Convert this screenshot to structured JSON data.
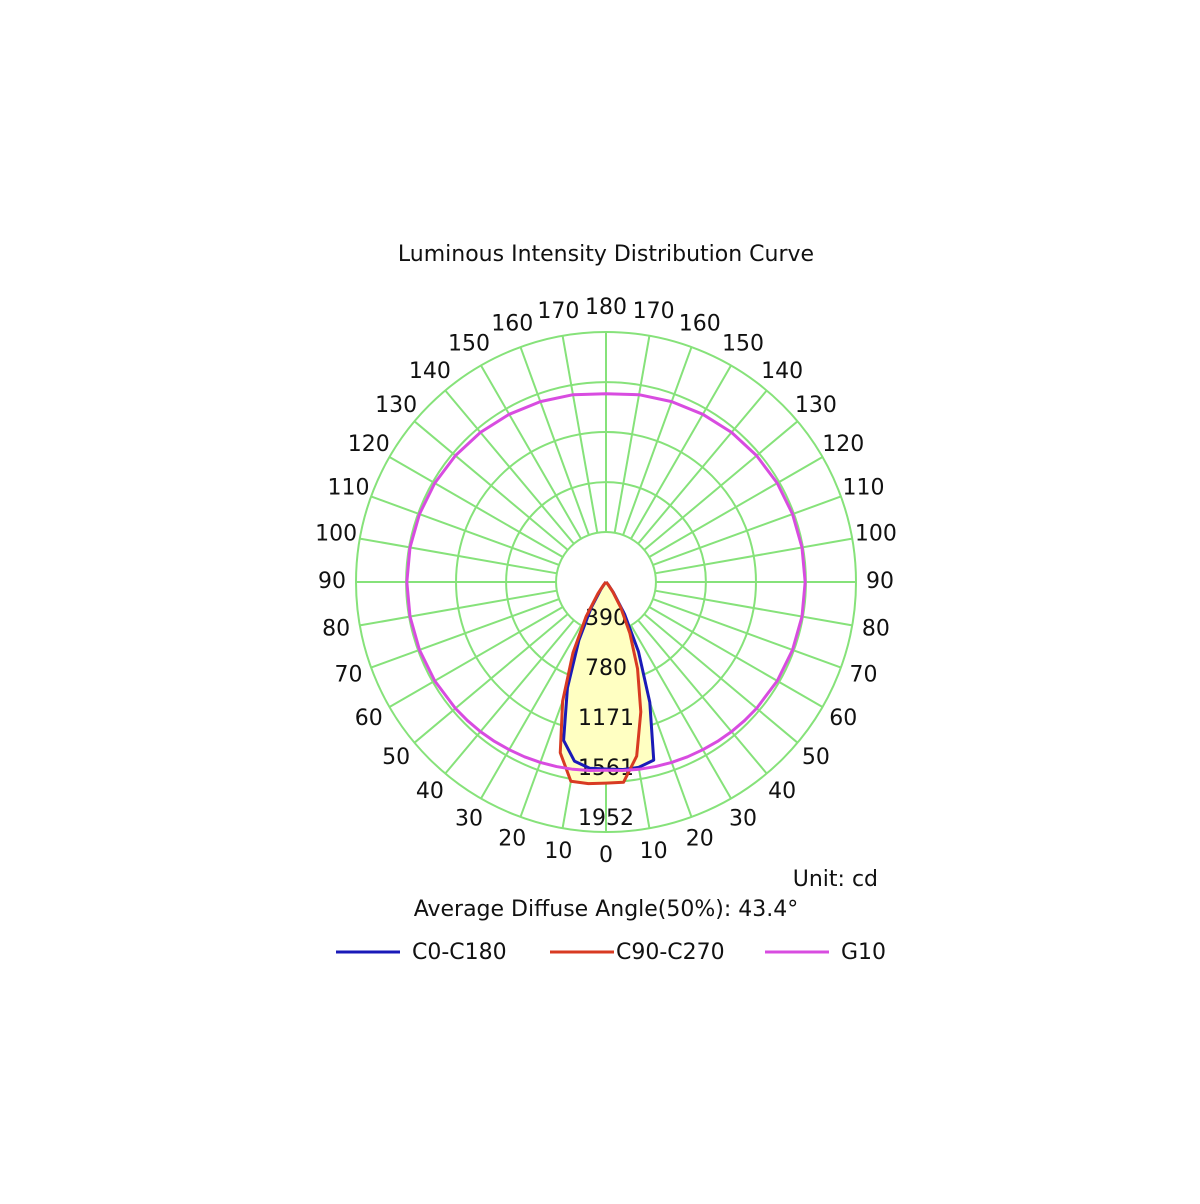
{
  "chart_data": {
    "type": "polar",
    "title": "Luminous Intensity Distribution Curve",
    "unit_label": "Unit: cd",
    "diffuse_angle_label": "Average Diffuse Angle(50%): 43.4°",
    "rlim": [
      0,
      1952
    ],
    "rticks": [
      390,
      780,
      1171,
      1561,
      1952
    ],
    "thetaticks": [
      0,
      10,
      20,
      30,
      40,
      50,
      60,
      70,
      80,
      90,
      100,
      110,
      120,
      130,
      140,
      150,
      160,
      170,
      180
    ],
    "grid_color": "#86e27a",
    "fill_color": "#ffffc2",
    "x": [
      -180,
      -170,
      -160,
      -150,
      -140,
      -130,
      -120,
      -110,
      -100,
      -90,
      -80,
      -70,
      -60,
      -50,
      -45,
      -40,
      -35,
      -30,
      -25,
      -20,
      -15,
      -10,
      -5,
      0,
      5,
      10,
      15,
      20,
      25,
      30,
      35,
      40,
      45,
      50,
      60,
      70,
      80,
      90,
      100,
      110,
      120,
      130,
      140,
      150,
      160,
      170,
      180
    ],
    "series": [
      {
        "name": "C0-C180",
        "color": "#1a1ab8",
        "fill": true,
        "values": [
          0,
          0,
          0,
          0,
          0,
          0,
          0,
          0,
          0,
          0,
          0,
          0,
          0,
          0,
          0,
          15,
          70,
          230,
          500,
          880,
          1280,
          1420,
          1460,
          1460,
          1470,
          1470,
          1440,
          1000,
          600,
          290,
          100,
          25,
          0,
          0,
          0,
          0,
          0,
          0,
          0,
          0,
          0,
          0,
          0,
          0,
          0,
          0,
          0
        ]
      },
      {
        "name": "C90-C270",
        "color": "#d83a22",
        "fill": true,
        "values": [
          0,
          0,
          0,
          0,
          0,
          0,
          0,
          0,
          0,
          0,
          0,
          0,
          0,
          0,
          0,
          30,
          110,
          310,
          610,
          990,
          1380,
          1580,
          1580,
          1570,
          1570,
          1380,
          1050,
          720,
          440,
          230,
          90,
          25,
          0,
          0,
          0,
          0,
          0,
          0,
          0,
          0,
          0,
          0,
          0,
          0,
          0,
          0,
          0
        ]
      },
      {
        "name": "G10",
        "color": "#d84ce0",
        "fill": false,
        "values": [
          1470,
          1485,
          1499,
          1512,
          1525,
          1535,
          1544,
          1550,
          1554,
          1555,
          1554,
          1550,
          1544,
          1535,
          1530,
          1525,
          1519,
          1512,
          1506,
          1499,
          1492,
          1485,
          1477,
          1470,
          1477,
          1485,
          1492,
          1499,
          1506,
          1512,
          1519,
          1525,
          1530,
          1535,
          1544,
          1550,
          1554,
          1555,
          1554,
          1550,
          1544,
          1535,
          1525,
          1512,
          1499,
          1485,
          1470
        ]
      }
    ]
  }
}
